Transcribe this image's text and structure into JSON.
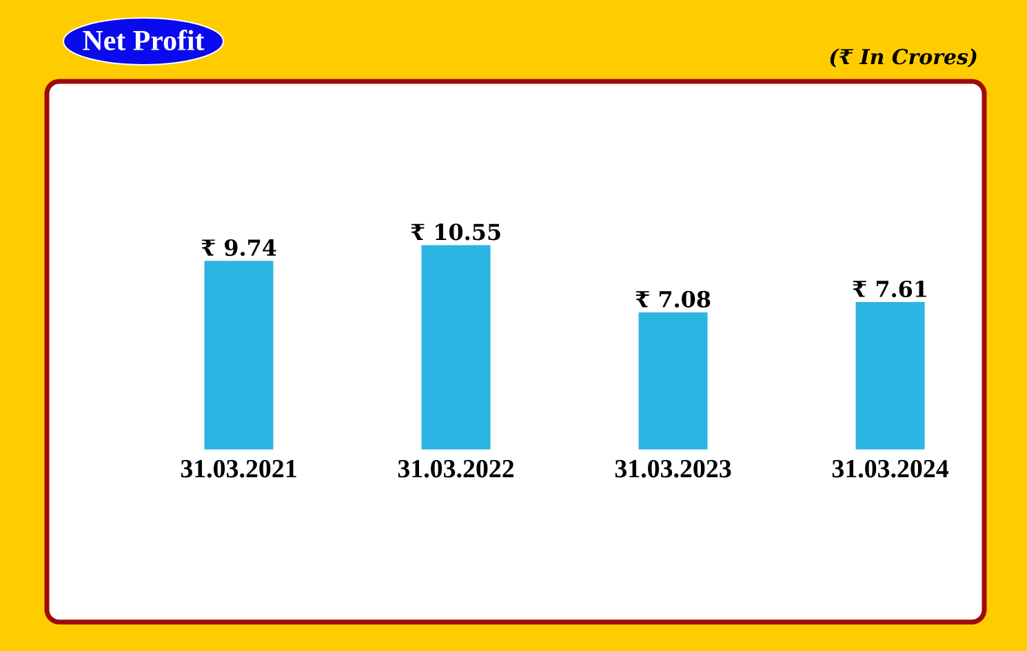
{
  "chart_data": {
    "type": "bar",
    "title": "Net Profit",
    "annotations": [
      "(₹ In Crores)"
    ],
    "categories": [
      "31.03.2021",
      "31.03.2022",
      "31.03.2023",
      "31.03.2024"
    ],
    "values": [
      9.74,
      10.55,
      7.08,
      7.61
    ],
    "value_labels": [
      "₹ 9.74",
      "₹ 10.55",
      "₹ 7.08",
      "₹ 7.61"
    ],
    "color": "#2bb5e3"
  }
}
